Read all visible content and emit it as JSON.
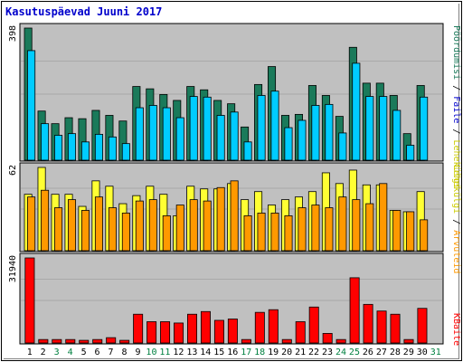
{
  "title": "Kasutuspäevad Juuni 2017",
  "colors": {
    "frame": "#ffffff",
    "panel": "#c0c0c0",
    "grid": "#a9a9a9",
    "text_title": "#0000cc",
    "axis_text": "#000000",
    "weekend_day": "#008040",
    "hits": "#1a7a5a",
    "files": "#00ccff",
    "pages": "#ffff33",
    "visits": "#ff9900",
    "kbytes": "#ff0000",
    "legend_slash": "#000000"
  },
  "legend_right": {
    "top": [
      {
        "text": "Pöördumisi",
        "color": "#1a7a5a"
      },
      {
        "text": " / ",
        "color": "#000000"
      },
      {
        "text": "Faile",
        "color": "#0000cc"
      },
      {
        "text": " / ",
        "color": "#000000"
      },
      {
        "text": "Lehekülgi",
        "color": "#cccc00"
      }
    ],
    "middle": [
      {
        "text": "Lehekülgi",
        "color": "#cccc00"
      },
      {
        "text": " / ",
        "color": "#000000"
      },
      {
        "text": "Arvuteid",
        "color": "#ff9900"
      }
    ],
    "bottom": [
      {
        "text": "KBaite",
        "color": "#ff0000"
      }
    ]
  },
  "chart_data": {
    "type": "bar",
    "title": "Kasutuspäevad Juuni 2017",
    "categories": [
      "1",
      "2",
      "3",
      "4",
      "5",
      "6",
      "7",
      "8",
      "9",
      "10",
      "11",
      "12",
      "13",
      "14",
      "15",
      "16",
      "17",
      "18",
      "19",
      "20",
      "21",
      "22",
      "23",
      "24",
      "25",
      "26",
      "27",
      "28",
      "29",
      "30",
      "31"
    ],
    "weekend_days": [
      "3",
      "4",
      "10",
      "11",
      "17",
      "18",
      "24",
      "25",
      "31"
    ],
    "panels": [
      {
        "name": "top",
        "ymax_label": "398",
        "ylim": [
          0,
          398
        ],
        "series": [
          {
            "name": "Pöördumisi",
            "color": "#1a7a5a",
            "values": [
              398,
              148,
              110,
              128,
              125,
              150,
              135,
              118,
              222,
              215,
              198,
              180,
              222,
              212,
              180,
              170,
              100,
              228,
              282,
              135,
              138,
              225,
              195,
              132,
              340,
              232,
              232,
              195,
              80,
              225,
              null
            ]
          },
          {
            "name": "Faile",
            "color": "#00ccff",
            "values": [
              330,
              110,
              75,
              80,
              55,
              78,
              70,
              50,
              158,
              165,
              158,
              128,
              192,
              190,
              135,
              145,
              55,
              195,
              208,
              98,
              120,
              165,
              168,
              82,
              292,
              192,
              192,
              150,
              45,
              190,
              null
            ]
          }
        ]
      },
      {
        "name": "middle",
        "ymax_label": "62",
        "ylim": [
          0,
          62
        ],
        "series": [
          {
            "name": "Lehekülgi",
            "color": "#ffff33",
            "values": [
              42,
              62,
              42,
              42,
              33,
              52,
              48,
              35,
              41,
              48,
              42,
              26,
              48,
              46,
              46,
              50,
              38,
              44,
              34,
              38,
              40,
              44,
              58,
              50,
              60,
              49,
              49,
              30,
              29,
              44,
              null
            ]
          },
          {
            "name": "Arvuteid",
            "color": "#ff9900",
            "values": [
              40,
              45,
              32,
              38,
              30,
              40,
              32,
              28,
              37,
              38,
              26,
              34,
              38,
              37,
              47,
              52,
              26,
              28,
              28,
              26,
              32,
              34,
              32,
              40,
              38,
              35,
              50,
              30,
              29,
              23,
              null
            ]
          }
        ]
      },
      {
        "name": "bottom",
        "ymax_label": "31940",
        "ylim": [
          0,
          31940
        ],
        "series": [
          {
            "name": "KBaite",
            "color": "#ff0000",
            "values": [
              31940,
              1300,
              1300,
              1300,
              1000,
              1300,
              2000,
              1000,
              10800,
              8000,
              8000,
              7500,
              10800,
              11800,
              8500,
              9000,
              1300,
              11500,
              12500,
              1300,
              8000,
              13500,
              3600,
              1300,
              24500,
              14500,
              12000,
              10800,
              1300,
              13000,
              null
            ]
          }
        ]
      }
    ],
    "grid": true
  }
}
